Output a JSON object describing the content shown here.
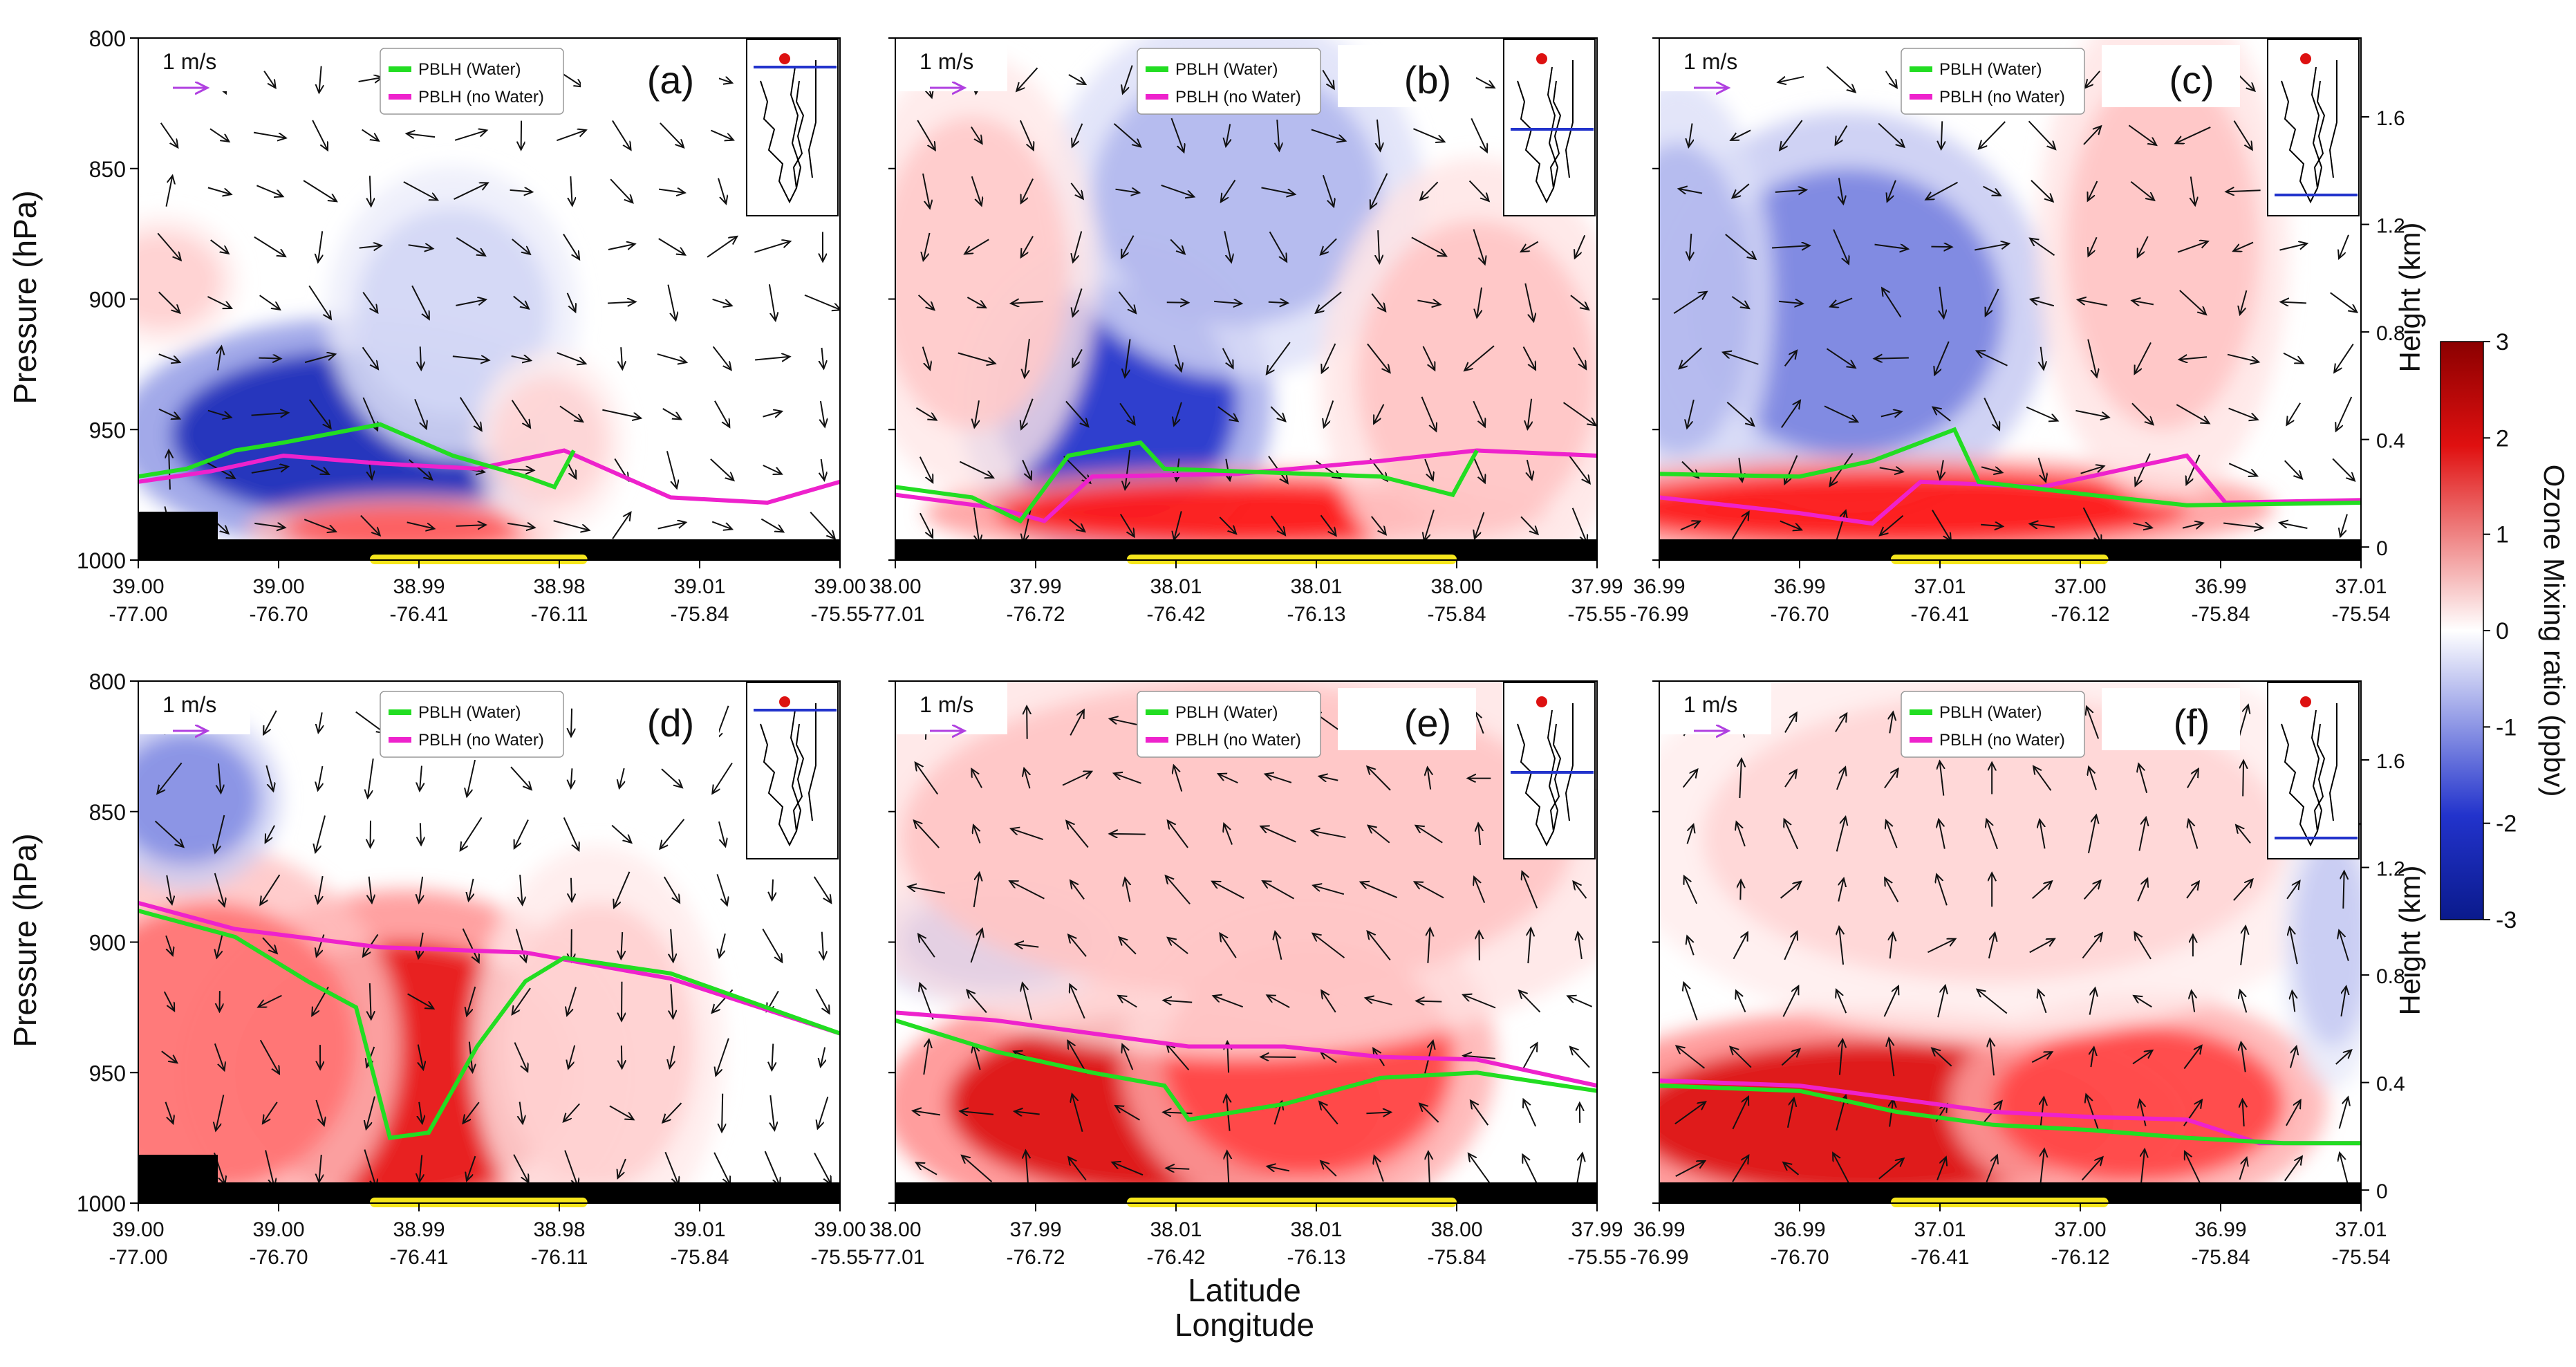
{
  "figure": {
    "shared_xlabel_line1": "Latitude",
    "shared_xlabel_line2": "Longitude",
    "left_ylabel": "Pressure (hPa)",
    "right_ylabel": "Height (km)",
    "colorbar": {
      "label": "Ozone Mixing ratio (ppbv)",
      "ticks": [
        "3",
        "2",
        "1",
        "0",
        "-1",
        "-2",
        "-3"
      ],
      "min": -3,
      "max": 3,
      "colors": {
        "high": "#8b0000",
        "mid": "#ffffff",
        "low": "#0a1a8c"
      }
    },
    "legend": {
      "water": {
        "label": "PBLH (Water)",
        "color": "#22dd22"
      },
      "nowater": {
        "label": "PBLH (no Water)",
        "color": "#ee22cc"
      }
    },
    "wind_scale_label": "1 m/s"
  },
  "chart_data": [
    {
      "type": "heatmap",
      "panel": "(a)",
      "yticks_pressure": [
        "800",
        "850",
        "900",
        "950",
        "1000"
      ],
      "ylim": [
        1000,
        800
      ],
      "xtick_lat": [
        "39.00",
        "39.00",
        "38.99",
        "38.98",
        "39.01",
        "39.00"
      ],
      "xtick_lon": [
        "-77.00",
        "-76.70",
        "-76.41",
        "-76.11",
        "-75.84",
        "-75.55"
      ],
      "pblh_water": [
        [
          -77.0,
          968
        ],
        [
          -76.9,
          965
        ],
        [
          -76.8,
          958
        ],
        [
          -76.7,
          955
        ],
        [
          -76.5,
          948
        ],
        [
          -76.35,
          960
        ],
        [
          -76.2,
          968
        ],
        [
          -76.14,
          972
        ],
        [
          -76.1,
          958
        ]
      ],
      "pblh_nowater": [
        [
          -77.0,
          970
        ],
        [
          -76.85,
          966
        ],
        [
          -76.7,
          960
        ],
        [
          -76.5,
          963
        ],
        [
          -76.3,
          965
        ],
        [
          -76.12,
          958
        ],
        [
          -75.9,
          976
        ],
        [
          -75.7,
          978
        ],
        [
          -75.55,
          970
        ]
      ],
      "ozone_blobs": [
        {
          "lon": -76.55,
          "p": 952,
          "rlon": 0.38,
          "rp": 32,
          "v": -2.3
        },
        {
          "lon": -76.35,
          "p": 905,
          "rlon": 0.2,
          "rp": 40,
          "v": -0.4
        },
        {
          "lon": -76.45,
          "p": 988,
          "rlon": 0.25,
          "rp": 9,
          "v": 1.4
        },
        {
          "lon": -76.95,
          "p": 893,
          "rlon": 0.12,
          "rp": 18,
          "v": 0.4
        },
        {
          "lon": -76.15,
          "p": 955,
          "rlon": 0.12,
          "rp": 25,
          "v": 0.35
        }
      ],
      "wind_u_bias": 0.8,
      "wind_w_bias": -0.4,
      "has_highlight_bar": true,
      "topography": "land_left"
    },
    {
      "type": "heatmap",
      "panel": "(b)",
      "yticks_pressure": [],
      "ylim": [
        1000,
        800
      ],
      "xtick_lat": [
        "38.00",
        "37.99",
        "38.01",
        "38.01",
        "38.00",
        "37.99"
      ],
      "xtick_lon": [
        "-77.01",
        "-76.72",
        "-76.42",
        "-76.13",
        "-75.84",
        "-75.55"
      ],
      "pblh_water": [
        [
          -77.01,
          972
        ],
        [
          -76.85,
          976
        ],
        [
          -76.75,
          985
        ],
        [
          -76.65,
          960
        ],
        [
          -76.5,
          955
        ],
        [
          -76.45,
          965
        ],
        [
          -76.0,
          968
        ],
        [
          -75.85,
          975
        ],
        [
          -75.8,
          958
        ]
      ],
      "pblh_nowater": [
        [
          -77.01,
          975
        ],
        [
          -76.8,
          980
        ],
        [
          -76.7,
          985
        ],
        [
          -76.6,
          968
        ],
        [
          -76.3,
          967
        ],
        [
          -76.0,
          962
        ],
        [
          -75.8,
          958
        ],
        [
          -75.55,
          960
        ]
      ],
      "ozone_blobs": [
        {
          "lon": -76.55,
          "p": 940,
          "rlon": 0.25,
          "rp": 45,
          "v": -2.0
        },
        {
          "lon": -76.3,
          "p": 860,
          "rlon": 0.3,
          "rp": 50,
          "v": -0.7
        },
        {
          "lon": -76.3,
          "p": 982,
          "rlon": 0.5,
          "rp": 12,
          "v": 2.0
        },
        {
          "lon": -76.85,
          "p": 890,
          "rlon": 0.2,
          "rp": 60,
          "v": 0.45
        },
        {
          "lon": -75.8,
          "p": 930,
          "rlon": 0.25,
          "rp": 60,
          "v": 0.5
        }
      ],
      "wind_u_bias": 0.3,
      "wind_w_bias": -0.8,
      "has_highlight_bar": true,
      "topography": "flat"
    },
    {
      "type": "heatmap",
      "panel": "(c)",
      "yticks_pressure": [],
      "ylim": [
        1000,
        800
      ],
      "xtick_lat": [
        "36.99",
        "36.99",
        "37.01",
        "37.00",
        "36.99",
        "37.01"
      ],
      "xtick_lon": [
        "-76.99",
        "-76.70",
        "-76.41",
        "-76.12",
        "-75.84",
        "-75.54"
      ],
      "height_ticks": [
        "0",
        "0.4",
        "0.8",
        "1.2",
        "1.6"
      ],
      "pblh_water": [
        [
          -76.99,
          967
        ],
        [
          -76.7,
          968
        ],
        [
          -76.55,
          962
        ],
        [
          -76.45,
          955
        ],
        [
          -76.38,
          950
        ],
        [
          -76.33,
          970
        ],
        [
          -76.1,
          975
        ],
        [
          -75.9,
          979
        ],
        [
          -75.54,
          978
        ]
      ],
      "pblh_nowater": [
        [
          -76.99,
          976
        ],
        [
          -76.7,
          982
        ],
        [
          -76.55,
          986
        ],
        [
          -76.45,
          970
        ],
        [
          -76.2,
          972
        ],
        [
          -75.9,
          960
        ],
        [
          -75.82,
          978
        ],
        [
          -75.54,
          977
        ]
      ],
      "ozone_blobs": [
        {
          "lon": -76.6,
          "p": 905,
          "rlon": 0.32,
          "rp": 55,
          "v": -1.2
        },
        {
          "lon": -76.95,
          "p": 900,
          "rlon": 0.15,
          "rp": 60,
          "v": -0.7
        },
        {
          "lon": -76.5,
          "p": 980,
          "rlon": 0.6,
          "rp": 14,
          "v": 2.0
        },
        {
          "lon": -75.95,
          "p": 880,
          "rlon": 0.2,
          "rp": 70,
          "v": 0.5
        }
      ],
      "wind_u_bias": 0.2,
      "wind_w_bias": -0.5,
      "has_highlight_bar": true,
      "topography": "flat"
    },
    {
      "type": "heatmap",
      "panel": "(d)",
      "yticks_pressure": [
        "800",
        "850",
        "900",
        "950",
        "1000"
      ],
      "ylim": [
        1000,
        800
      ],
      "xtick_lat": [
        "39.00",
        "39.00",
        "38.99",
        "38.98",
        "39.01",
        "39.00"
      ],
      "xtick_lon": [
        "-77.00",
        "-76.70",
        "-76.41",
        "-76.11",
        "-75.84",
        "-75.55"
      ],
      "pblh_water": [
        [
          -77.0,
          888
        ],
        [
          -76.8,
          898
        ],
        [
          -76.65,
          915
        ],
        [
          -76.55,
          925
        ],
        [
          -76.48,
          975
        ],
        [
          -76.4,
          973
        ],
        [
          -76.3,
          940
        ],
        [
          -76.2,
          915
        ],
        [
          -76.12,
          906
        ],
        [
          -75.9,
          912
        ],
        [
          -75.55,
          935
        ]
      ],
      "pblh_nowater": [
        [
          -77.0,
          885
        ],
        [
          -76.8,
          895
        ],
        [
          -76.5,
          902
        ],
        [
          -76.2,
          904
        ],
        [
          -75.9,
          914
        ],
        [
          -75.55,
          935
        ]
      ],
      "ozone_blobs": [
        {
          "lon": -76.45,
          "p": 950,
          "rlon": 0.35,
          "rp": 50,
          "v": 2.2
        },
        {
          "lon": -76.85,
          "p": 940,
          "rlon": 0.3,
          "rp": 55,
          "v": 1.2
        },
        {
          "lon": -76.9,
          "p": 845,
          "rlon": 0.15,
          "rp": 25,
          "v": -1.1
        },
        {
          "lon": -76.05,
          "p": 940,
          "rlon": 0.2,
          "rp": 55,
          "v": 0.4
        }
      ],
      "wind_u_bias": 0.0,
      "wind_w_bias": -1.2,
      "has_highlight_bar": true,
      "topography": "land_left"
    },
    {
      "type": "heatmap",
      "panel": "(e)",
      "yticks_pressure": [],
      "ylim": [
        1000,
        800
      ],
      "xtick_lat": [
        "38.00",
        "37.99",
        "38.01",
        "38.01",
        "38.00",
        "37.99"
      ],
      "xtick_lon": [
        "-77.01",
        "-76.72",
        "-76.42",
        "-76.13",
        "-75.84",
        "-75.55"
      ],
      "pblh_water": [
        [
          -77.01,
          930
        ],
        [
          -76.8,
          942
        ],
        [
          -76.6,
          950
        ],
        [
          -76.45,
          955
        ],
        [
          -76.4,
          968
        ],
        [
          -76.2,
          962
        ],
        [
          -76.0,
          952
        ],
        [
          -75.8,
          950
        ],
        [
          -75.55,
          957
        ]
      ],
      "pblh_nowater": [
        [
          -77.01,
          927
        ],
        [
          -76.8,
          930
        ],
        [
          -76.6,
          935
        ],
        [
          -76.4,
          940
        ],
        [
          -76.2,
          940
        ],
        [
          -76.0,
          944
        ],
        [
          -75.8,
          945
        ],
        [
          -75.55,
          955
        ]
      ],
      "ozone_blobs": [
        {
          "lon": -76.45,
          "p": 962,
          "rlon": 0.45,
          "rp": 35,
          "v": 2.3
        },
        {
          "lon": -76.15,
          "p": 945,
          "rlon": 0.3,
          "rp": 45,
          "v": 1.6
        },
        {
          "lon": -76.8,
          "p": 900,
          "rlon": 0.2,
          "rp": 18,
          "v": -1.3
        },
        {
          "lon": -76.3,
          "p": 860,
          "rlon": 0.7,
          "rp": 60,
          "v": 0.5
        }
      ],
      "wind_u_bias": -0.6,
      "wind_w_bias": 0.8,
      "has_highlight_bar": true,
      "topography": "flat"
    },
    {
      "type": "heatmap",
      "panel": "(f)",
      "yticks_pressure": [],
      "ylim": [
        1000,
        800
      ],
      "xtick_lat": [
        "36.99",
        "36.99",
        "37.01",
        "37.00",
        "36.99",
        "37.01"
      ],
      "xtick_lon": [
        "-76.99",
        "-76.70",
        "-76.41",
        "-76.12",
        "-75.84",
        "-75.54"
      ],
      "height_ticks": [
        "0",
        "0.4",
        "0.8",
        "1.2",
        "1.6"
      ],
      "pblh_water": [
        [
          -76.99,
          955
        ],
        [
          -76.7,
          957
        ],
        [
          -76.5,
          965
        ],
        [
          -76.3,
          970
        ],
        [
          -76.1,
          972
        ],
        [
          -75.9,
          975
        ],
        [
          -75.7,
          977
        ],
        [
          -75.54,
          977
        ]
      ],
      "pblh_nowater": [
        [
          -76.99,
          953
        ],
        [
          -76.7,
          955
        ],
        [
          -76.5,
          960
        ],
        [
          -76.3,
          965
        ],
        [
          -76.1,
          967
        ],
        [
          -75.9,
          968
        ],
        [
          -75.75,
          977
        ],
        [
          -75.54,
          977
        ]
      ],
      "ozone_blobs": [
        {
          "lon": -76.55,
          "p": 968,
          "rlon": 0.5,
          "rp": 30,
          "v": 2.3
        },
        {
          "lon": -76.0,
          "p": 962,
          "rlon": 0.3,
          "rp": 30,
          "v": 1.6
        },
        {
          "lon": -76.3,
          "p": 860,
          "rlon": 0.6,
          "rp": 55,
          "v": 0.35
        },
        {
          "lon": -75.6,
          "p": 900,
          "rlon": 0.08,
          "rp": 40,
          "v": -0.5
        }
      ],
      "wind_u_bias": 0.2,
      "wind_w_bias": 1.1,
      "has_highlight_bar": true,
      "topography": "flat"
    }
  ]
}
